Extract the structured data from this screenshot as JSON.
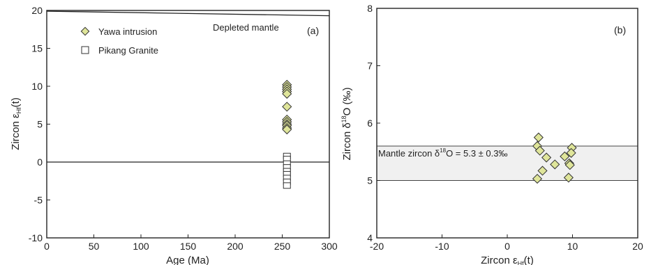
{
  "chart_data": [
    {
      "type": "scatter",
      "panel_label": "(a)",
      "xlabel": "Age (Ma)",
      "ylabel": "Zircon εHf(t)",
      "xlim": [
        0,
        300
      ],
      "ylim": [
        -10,
        20
      ],
      "xticks": [
        0,
        50,
        100,
        150,
        200,
        250,
        300
      ],
      "yticks": [
        -10,
        -5,
        0,
        5,
        10,
        15,
        20
      ],
      "grid": false,
      "legend_position": "top-left",
      "reference_lines": [
        {
          "name": "Depleted mantle",
          "points": [
            [
              0,
              19.9
            ],
            [
              300,
              19.3
            ]
          ]
        },
        {
          "name": "",
          "points": [
            [
              0,
              0
            ],
            [
              300,
              0
            ]
          ]
        }
      ],
      "series": [
        {
          "name": "Yawa intrusion",
          "marker": "diamond",
          "color": "#dfe59a",
          "x": [
            255,
            255,
            255,
            255,
            255,
            255,
            255,
            255,
            255,
            255,
            255,
            255
          ],
          "y": [
            10.2,
            9.9,
            9.6,
            9.3,
            9.0,
            7.3,
            5.6,
            5.3,
            5.0,
            4.8,
            4.5,
            4.3
          ]
        },
        {
          "name": "Pikang Granite",
          "marker": "square",
          "color": "#ffffff",
          "x": [
            255,
            255,
            255,
            255,
            255,
            255,
            255,
            255,
            255
          ],
          "y": [
            0.8,
            0.4,
            -0.2,
            -0.7,
            -1.2,
            -1.6,
            -2.1,
            -2.6,
            -3.1
          ]
        }
      ]
    },
    {
      "type": "scatter",
      "panel_label": "(b)",
      "xlabel": "Zircon εHf(t)",
      "ylabel": "Zircon δ18O (‰)",
      "xlim": [
        -20,
        20
      ],
      "ylim": [
        4,
        8
      ],
      "xticks": [
        -20,
        -10,
        0,
        10,
        20
      ],
      "yticks": [
        4,
        5,
        6,
        7,
        8
      ],
      "grid": false,
      "band": {
        "label": "Mantle zircon δ18O = 5.3 ± 0.3‰",
        "y_range": [
          5.0,
          5.6
        ],
        "color": "#f0f0f0"
      },
      "series": [
        {
          "name": "Yawa intrusion",
          "marker": "diamond",
          "color": "#dfe59a",
          "x": [
            4.8,
            4.6,
            5.0,
            6.0,
            5.4,
            4.6,
            7.3,
            8.8,
            9.9,
            9.8,
            9.5,
            9.6,
            9.4
          ],
          "y": [
            5.75,
            5.6,
            5.52,
            5.4,
            5.17,
            5.03,
            5.28,
            5.42,
            5.57,
            5.48,
            5.3,
            5.27,
            5.05
          ]
        }
      ]
    }
  ]
}
